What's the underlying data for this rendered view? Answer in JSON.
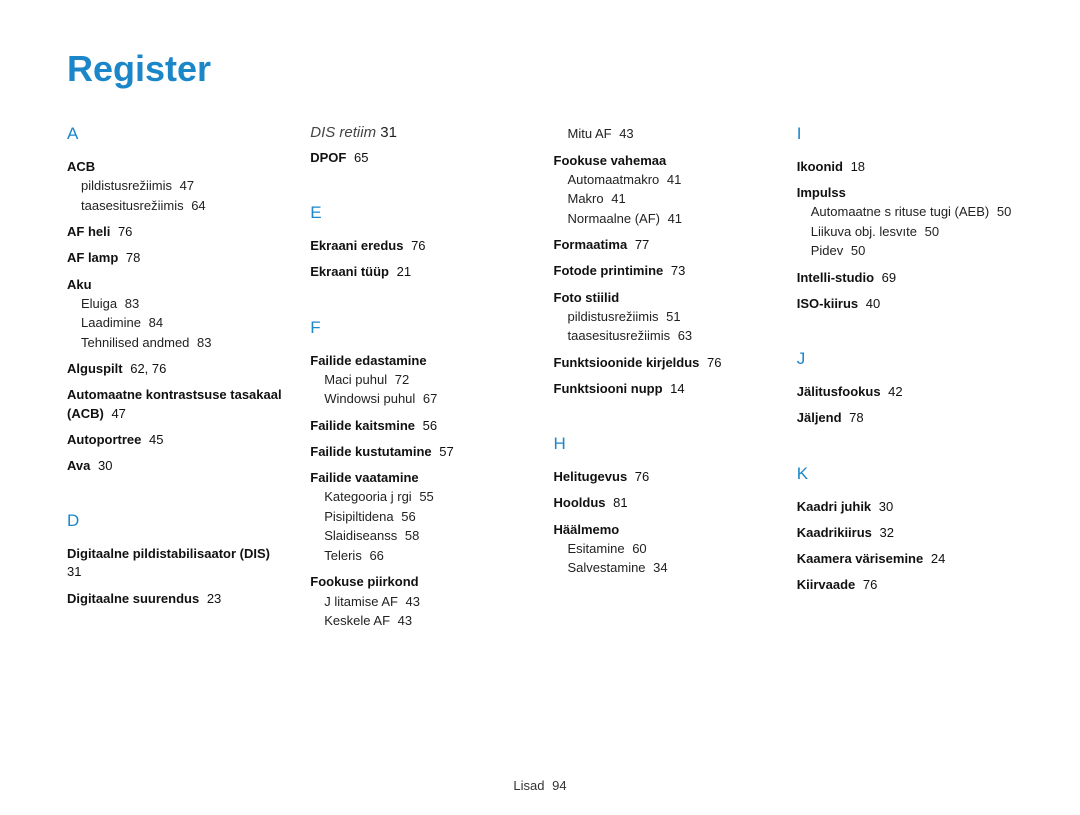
{
  "title": "Register",
  "footer": {
    "label": "Lisad",
    "page": "94"
  },
  "cols": [
    {
      "groups": [
        {
          "letter": "A",
          "entries": [
            {
              "main": "ACB",
              "subs": [
                {
                  "text": "pildistusrežiimis",
                  "pg": "47"
                },
                {
                  "text": "taasesitusrežiimis",
                  "pg": "64"
                }
              ]
            },
            {
              "main": "AF heli",
              "pg": "76"
            },
            {
              "main": "AF lamp",
              "pg": "78"
            },
            {
              "main": "Aku",
              "subs": [
                {
                  "text": "Eluiga",
                  "pg": "83"
                },
                {
                  "text": "Laadimine",
                  "pg": "84"
                },
                {
                  "text": "Tehnilised andmed",
                  "pg": "83"
                }
              ]
            },
            {
              "main": "Alguspilt",
              "pg": "62, 76"
            },
            {
              "main": "Automaatne kontrastsuse tasakaal (ACB)",
              "pg": "47"
            },
            {
              "main": "Autoportree",
              "pg": "45"
            },
            {
              "main": "Ava",
              "pg": "30"
            }
          ]
        },
        {
          "letter": "D",
          "entries": [
            {
              "main": "Digitaalne pildistabilisaator (DIS)",
              "pg": "31"
            },
            {
              "main": "Digitaalne suurendus",
              "pg": "23"
            }
          ]
        }
      ]
    },
    {
      "cont": {
        "label": "DIS retiim",
        "pg": "31"
      },
      "groups": [
        {
          "entries": [
            {
              "main": "DPOF",
              "pg": "65"
            }
          ]
        },
        {
          "letter": "E",
          "entries": [
            {
              "main": "Ekraani eredus",
              "pg": "76"
            },
            {
              "main": "Ekraani tüüp",
              "pg": "21"
            }
          ]
        },
        {
          "letter": "F",
          "entries": [
            {
              "main": "Failide edastamine",
              "subs": [
                {
                  "text": "Maci puhul",
                  "pg": "72"
                },
                {
                  "text": "Windowsi puhul",
                  "pg": "67"
                }
              ]
            },
            {
              "main": "Failide kaitsmine",
              "pg": "56"
            },
            {
              "main": "Failide kustutamine",
              "pg": "57"
            },
            {
              "main": "Failide vaatamine",
              "subs": [
                {
                  "text": "Kategooria j rgi",
                  "pg": "55"
                },
                {
                  "text": "Pisipiltidena",
                  "pg": "56"
                },
                {
                  "text": "Slaidiseanss",
                  "pg": "58"
                },
                {
                  "text": "Teleris",
                  "pg": "66"
                }
              ]
            },
            {
              "main": "Fookuse piirkond",
              "subs": [
                {
                  "text": "J litamise AF",
                  "pg": "43"
                },
                {
                  "text": "Keskele AF",
                  "pg": "43"
                }
              ]
            }
          ]
        }
      ]
    },
    {
      "groups": [
        {
          "entries": [
            {
              "subOnly": true,
              "subs": [
                {
                  "text": "Mitu AF",
                  "pg": "43"
                }
              ]
            },
            {
              "main": "Fookuse vahemaa",
              "subs": [
                {
                  "text": "Automaatmakro",
                  "pg": "41"
                },
                {
                  "text": "Makro",
                  "pg": "41"
                },
                {
                  "text": "Normaalne (AF)",
                  "pg": "41"
                }
              ]
            },
            {
              "main": "Formaatima",
              "pg": "77"
            },
            {
              "main": "Fotode printimine",
              "pg": "73"
            },
            {
              "main": "Foto stiilid",
              "subs": [
                {
                  "text": "pildistusrežiimis",
                  "pg": "51"
                },
                {
                  "text": "taasesitusrežiimis",
                  "pg": "63"
                }
              ]
            },
            {
              "main": "Funktsioonide kirjeldus",
              "pg": "76"
            },
            {
              "main": "Funktsiooni nupp",
              "pg": "14"
            }
          ]
        },
        {
          "letter": "H",
          "entries": [
            {
              "main": "Helitugevus",
              "pg": "76"
            },
            {
              "main": "Hooldus",
              "pg": "81"
            },
            {
              "main": "Häälmemo",
              "subs": [
                {
                  "text": "Esitamine",
                  "pg": "60"
                },
                {
                  "text": "Salvestamine",
                  "pg": "34"
                }
              ]
            }
          ]
        }
      ]
    },
    {
      "groups": [
        {
          "letter": "I",
          "entries": [
            {
              "main": "Ikoonid",
              "pg": "18"
            },
            {
              "main": "Impulss",
              "subs": [
                {
                  "text": "Automaatne s rituse tugi (AEB)",
                  "pg": "50"
                },
                {
                  "text": "Liikuva obj. lesvıte",
                  "pg": "50"
                },
                {
                  "text": "Pidev",
                  "pg": "50"
                }
              ]
            },
            {
              "main": "Intelli-studio",
              "pg": "69"
            },
            {
              "main": "ISO-kiirus",
              "pg": "40"
            }
          ]
        },
        {
          "letter": "J",
          "entries": [
            {
              "main": "Jälitusfookus",
              "pg": "42"
            },
            {
              "main": "Jäljend",
              "pg": "78"
            }
          ]
        },
        {
          "letter": "K",
          "entries": [
            {
              "main": "Kaadri juhik",
              "pg": "30"
            },
            {
              "main": "Kaadrikiirus",
              "pg": "32"
            },
            {
              "main": "Kaamera värisemine",
              "pg": "24"
            },
            {
              "main": "Kiirvaade",
              "pg": "76"
            }
          ]
        }
      ]
    }
  ]
}
